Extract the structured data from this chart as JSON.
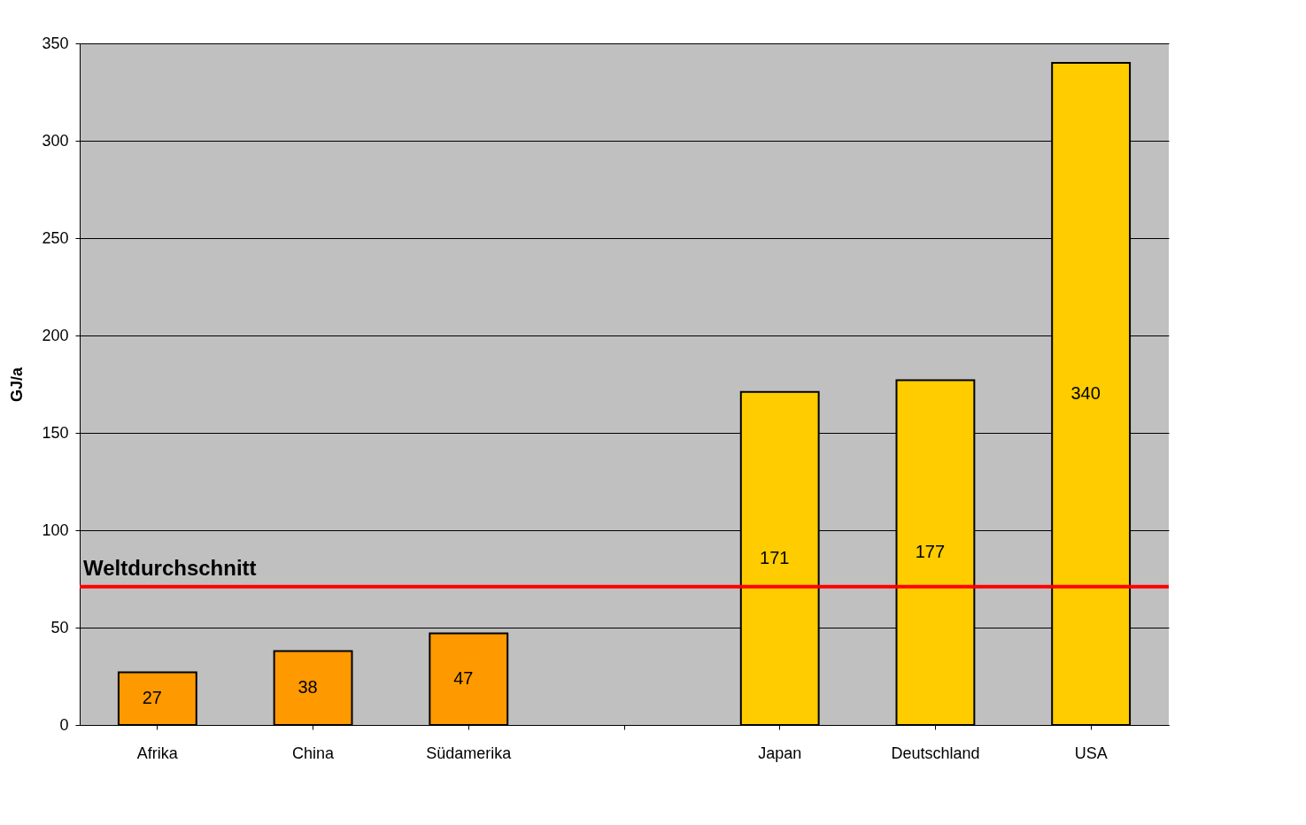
{
  "chart_data": {
    "type": "bar",
    "ylabel": "GJ/a",
    "categories": [
      "Afrika",
      "China",
      "Südamerika",
      null,
      "Japan",
      "Deutschland",
      "USA"
    ],
    "values": [
      27,
      38,
      47,
      null,
      171,
      177,
      340
    ],
    "colors": [
      "#ff9900",
      "#ff9900",
      "#ff9900",
      "#ffcc00",
      "#ffcc00",
      "#ffcc00",
      "#ffcc00"
    ],
    "ylim": [
      0,
      350
    ],
    "yticks": [
      0,
      50,
      100,
      150,
      200,
      250,
      300,
      350
    ],
    "grid": "y",
    "data_labels": true,
    "ref_lines": [
      {
        "axis": "y",
        "value": 71,
        "label": "Weltdurchschnitt",
        "color": "#ff0000"
      }
    ]
  }
}
